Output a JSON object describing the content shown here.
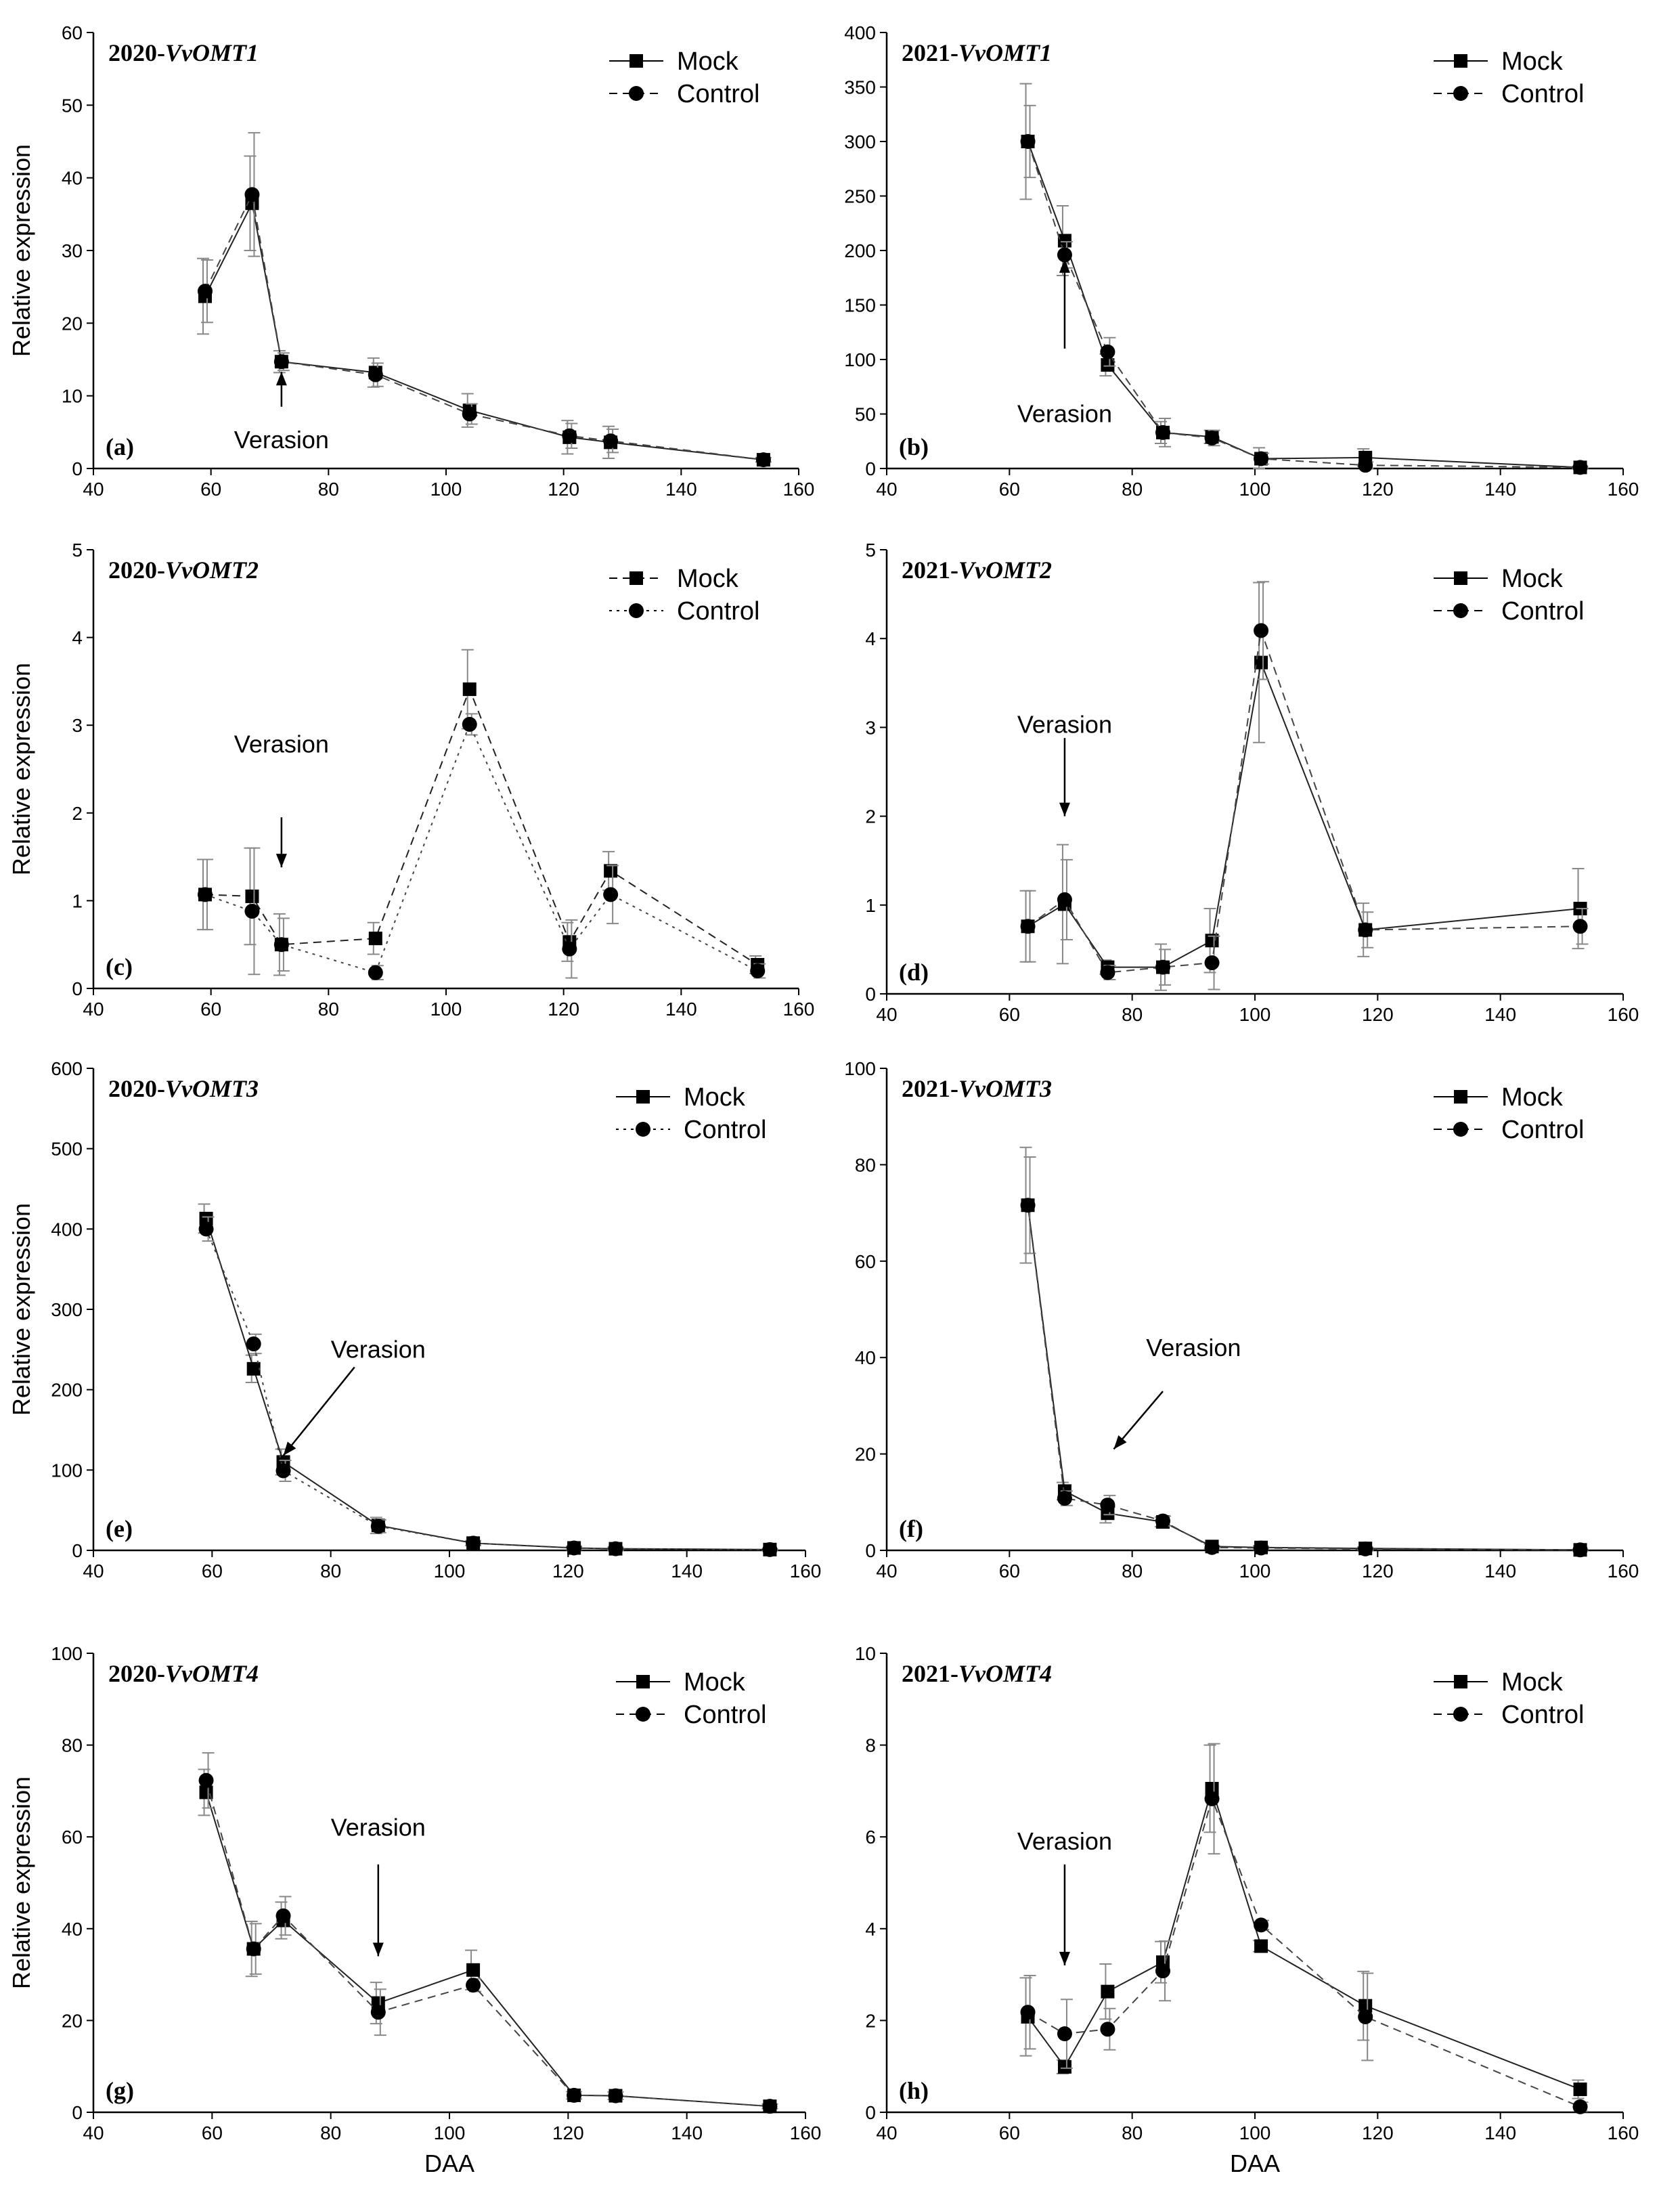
{
  "chart_data": [
    {
      "type": "line",
      "panel_label": "(a)",
      "title_prefix": "2020-",
      "title_gene": "VvOMT1",
      "xlabel": "",
      "ylabel": "Relative expression",
      "xlim": [
        40,
        160
      ],
      "ylim": [
        0,
        60
      ],
      "xticks": [
        40,
        60,
        80,
        100,
        120,
        140,
        160
      ],
      "yticks": [
        0,
        10,
        20,
        30,
        40,
        50,
        60
      ],
      "legend": "top-right",
      "series": [
        {
          "name": "Mock",
          "marker": "square",
          "line": "solid",
          "x": [
            59,
            67,
            72,
            88,
            104,
            121,
            128,
            154
          ],
          "y": [
            23.7,
            36.5,
            14.7,
            13.2,
            8,
            4.3,
            3.6,
            1.2
          ],
          "err": [
            5.2,
            6.5,
            1.5,
            2,
            2.3,
            2.3,
            2.2,
            0.3
          ]
        },
        {
          "name": "Control",
          "marker": "circle",
          "line": "dashed",
          "x": [
            59,
            67,
            72,
            88,
            104,
            121,
            128,
            154
          ],
          "y": [
            24.4,
            37.7,
            14.7,
            12.9,
            7.5,
            4.5,
            3.8,
            1.2
          ],
          "err": [
            4.3,
            8.5,
            1.2,
            1.6,
            1.4,
            1.7,
            1.6,
            0.3
          ]
        }
      ],
      "annotation": {
        "text": "Verasion",
        "x": 72,
        "arrow_from_y": 8.5,
        "arrow_to_y": 13.3,
        "text_y": 3.9
      }
    },
    {
      "type": "line",
      "panel_label": "(b)",
      "title_prefix": "2021-",
      "title_gene": "VvOMT1",
      "xlabel": "",
      "ylabel": "",
      "xlim": [
        40,
        160
      ],
      "ylim": [
        0,
        400
      ],
      "xticks": [
        40,
        60,
        80,
        100,
        120,
        140,
        160
      ],
      "yticks": [
        0,
        50,
        100,
        150,
        200,
        250,
        300,
        350,
        400
      ],
      "legend": "top-right",
      "series": [
        {
          "name": "Mock",
          "marker": "square",
          "line": "solid",
          "x": [
            63,
            69,
            76,
            85,
            93,
            101,
            118,
            153
          ],
          "y": [
            300,
            209,
            95,
            33,
            29,
            9,
            10,
            1
          ],
          "err": [
            53,
            32,
            10,
            10,
            6,
            10,
            8,
            1
          ]
        },
        {
          "name": "Control",
          "marker": "circle",
          "line": "dashed",
          "x": [
            63,
            69,
            76,
            85,
            93,
            101,
            118,
            153
          ],
          "y": [
            300,
            196,
            107,
            33,
            28,
            9,
            3,
            1
          ],
          "err": [
            33,
            12,
            13,
            13,
            7,
            5,
            3,
            1
          ]
        }
      ],
      "annotation": {
        "text": "Verasion",
        "x": 69,
        "arrow_from_y": 110,
        "arrow_to_y": 192,
        "text_y": 50
      }
    },
    {
      "type": "line",
      "panel_label": "(c)",
      "title_prefix": "2020-",
      "title_gene": "VvOMT2",
      "xlabel": "",
      "ylabel": "Relative expression",
      "xlim": [
        40,
        160
      ],
      "ylim": [
        0,
        5
      ],
      "xticks": [
        40,
        60,
        80,
        100,
        120,
        140,
        160
      ],
      "yticks": [
        0,
        1,
        2,
        3,
        4,
        5
      ],
      "legend": "top-right",
      "series": [
        {
          "name": "Mock",
          "marker": "square",
          "line": "dashed",
          "x": [
            59,
            67,
            72,
            88,
            104,
            121,
            128,
            153
          ],
          "y": [
            1.07,
            1.05,
            0.5,
            0.57,
            3.41,
            0.53,
            1.34,
            0.27
          ],
          "err": [
            0.4,
            0.55,
            0.35,
            0.18,
            0.45,
            0.22,
            0.22,
            0.1
          ]
        },
        {
          "name": "Control",
          "marker": "circle",
          "line": "dotted",
          "x": [
            59,
            67,
            72,
            88,
            104,
            121,
            128,
            153
          ],
          "y": [
            1.07,
            0.88,
            0.5,
            0.18,
            3.01,
            0.45,
            1.07,
            0.2
          ],
          "err": [
            0.4,
            0.72,
            0.3,
            0.08,
            0.12,
            0.33,
            0.33,
            0.08
          ]
        }
      ],
      "annotation": {
        "text": "Verasion",
        "x": 72,
        "arrow_from_y": 1.95,
        "arrow_to_y": 1.38,
        "text_y": 2.78
      }
    },
    {
      "type": "line",
      "panel_label": "(d)",
      "title_prefix": "2021-",
      "title_gene": "VvOMT2",
      "xlabel": "",
      "ylabel": "",
      "xlim": [
        40,
        160
      ],
      "ylim": [
        0,
        5
      ],
      "xticks": [
        40,
        60,
        80,
        100,
        120,
        140,
        160
      ],
      "yticks": [
        0,
        1,
        2,
        3,
        4,
        5
      ],
      "legend": "top-right",
      "series": [
        {
          "name": "Mock",
          "marker": "square",
          "line": "solid",
          "x": [
            63,
            69,
            76,
            85,
            93,
            101,
            118,
            153
          ],
          "y": [
            0.76,
            1.01,
            0.3,
            0.3,
            0.6,
            3.73,
            0.72,
            0.96
          ],
          "err": [
            0.4,
            0.67,
            0.08,
            0.26,
            0.36,
            0.9,
            0.3,
            0.45
          ]
        },
        {
          "name": "Control",
          "marker": "circle",
          "line": "dashed",
          "x": [
            63,
            69,
            76,
            85,
            93,
            101,
            118,
            153
          ],
          "y": [
            0.76,
            1.06,
            0.24,
            0.3,
            0.35,
            4.09,
            0.72,
            0.76
          ],
          "err": [
            0.4,
            0.45,
            0.08,
            0.2,
            0.3,
            0.55,
            0.2,
            0.2
          ]
        }
      ],
      "annotation": {
        "text": "Verasion",
        "x": 69,
        "arrow_from_y": 2.88,
        "arrow_to_y": 2.0,
        "text_y": 3.03
      }
    },
    {
      "type": "line",
      "panel_label": "(e)",
      "title_prefix": "2020-",
      "title_gene": "VvOMT3",
      "xlabel": "",
      "ylabel": "Relative expression",
      "xlim": [
        40,
        160
      ],
      "ylim": [
        0,
        600
      ],
      "xticks": [
        40,
        60,
        80,
        100,
        120,
        140,
        160
      ],
      "yticks": [
        0,
        100,
        200,
        300,
        400,
        500,
        600
      ],
      "legend": "top-right",
      "series": [
        {
          "name": "Mock",
          "marker": "square",
          "line": "solid",
          "x": [
            59,
            67,
            72,
            88,
            104,
            121,
            128,
            154
          ],
          "y": [
            413,
            226,
            110,
            31,
            9,
            3,
            2,
            1
          ],
          "err": [
            18,
            17,
            16,
            10,
            3,
            2,
            2,
            1
          ]
        },
        {
          "name": "Control",
          "marker": "circle",
          "line": "dotted",
          "x": [
            59,
            67,
            72,
            88,
            104,
            121,
            128,
            154
          ],
          "y": [
            400,
            257,
            99,
            30,
            9,
            3,
            2,
            1
          ],
          "err": [
            15,
            12,
            13,
            8,
            3,
            2,
            2,
            1
          ]
        }
      ],
      "annotation": {
        "text": "Verasion",
        "x": 72,
        "arrow_from_x": 84,
        "arrow_from_y": 228,
        "arrow_to_y": 118,
        "text_x": 88,
        "text_y": 250
      }
    },
    {
      "type": "line",
      "panel_label": "(f)",
      "title_prefix": "2021-",
      "title_gene": "VvOMT3",
      "xlabel": "",
      "ylabel": "",
      "xlim": [
        40,
        160
      ],
      "ylim": [
        0,
        100
      ],
      "xticks": [
        40,
        60,
        80,
        100,
        120,
        140,
        160
      ],
      "yticks": [
        0,
        20,
        40,
        60,
        80,
        100
      ],
      "legend": "top-right",
      "series": [
        {
          "name": "Mock",
          "marker": "square",
          "line": "solid",
          "x": [
            63,
            69,
            76,
            85,
            93,
            101,
            118,
            153
          ],
          "y": [
            71.6,
            12.3,
            7.7,
            5.9,
            0.8,
            0.6,
            0.4,
            0.1
          ],
          "err": [
            12,
            1.8,
            2,
            1,
            0.5,
            0.4,
            0.3,
            0.1
          ]
        },
        {
          "name": "Control",
          "marker": "circle",
          "line": "dashed",
          "x": [
            63,
            69,
            76,
            85,
            93,
            101,
            118,
            153
          ],
          "y": [
            71.6,
            10.8,
            9.4,
            6.1,
            0.6,
            0.5,
            0.3,
            0.1
          ],
          "err": [
            10,
            1.5,
            2,
            1,
            0.4,
            0.3,
            0.3,
            0.1
          ]
        }
      ],
      "annotation": {
        "text": "Verasion",
        "x": 76,
        "arrow_from_x": 85,
        "arrow_from_y": 33,
        "arrow_to_x": 77,
        "arrow_to_y": 21,
        "text_x": 90,
        "text_y": 42
      }
    },
    {
      "type": "line",
      "panel_label": "(g)",
      "title_prefix": "2020-",
      "title_gene": "VvOMT4",
      "xlabel": "DAA",
      "ylabel": "Relative expression",
      "xlim": [
        40,
        160
      ],
      "ylim": [
        0,
        100
      ],
      "xticks": [
        40,
        60,
        80,
        100,
        120,
        140,
        160
      ],
      "yticks": [
        0,
        20,
        40,
        60,
        80,
        100
      ],
      "legend": "top-right",
      "series": [
        {
          "name": "Mock",
          "marker": "square",
          "line": "solid",
          "x": [
            59,
            67,
            72,
            88,
            104,
            121,
            128,
            154
          ],
          "y": [
            69.7,
            35.6,
            41.8,
            23.8,
            31,
            3.7,
            3.6,
            1.3
          ],
          "err": [
            5,
            6,
            4,
            4.5,
            4.3,
            0.8,
            0.8,
            0.5
          ]
        },
        {
          "name": "Control",
          "marker": "circle",
          "line": "dashed",
          "x": [
            59,
            67,
            72,
            88,
            104,
            121,
            128,
            154
          ],
          "y": [
            72.3,
            35.6,
            42.8,
            21.8,
            27.7,
            3.7,
            3.6,
            1.3
          ],
          "err": [
            6,
            5.5,
            4.2,
            5,
            1.4,
            0.8,
            0.8,
            0.5
          ]
        }
      ],
      "annotation": {
        "text": "Verasion",
        "x": 88,
        "arrow_from_y": 54,
        "arrow_to_y": 34,
        "text_y": 62
      }
    },
    {
      "type": "line",
      "panel_label": "(h)",
      "title_prefix": "2021-",
      "title_gene": "VvOMT4",
      "xlabel": "DAA",
      "ylabel": "",
      "xlim": [
        40,
        160
      ],
      "ylim": [
        0,
        10
      ],
      "xticks": [
        40,
        60,
        80,
        100,
        120,
        140,
        160
      ],
      "yticks": [
        0,
        2,
        4,
        6,
        8,
        10
      ],
      "legend": "top-right",
      "series": [
        {
          "name": "Mock",
          "marker": "square",
          "line": "solid",
          "x": [
            63,
            69,
            76,
            85,
            93,
            101,
            118,
            153
          ],
          "y": [
            2.08,
            0.99,
            2.63,
            3.27,
            7.05,
            3.62,
            2.32,
            0.5
          ],
          "err": [
            0.85,
            0.15,
            0.6,
            0.45,
            0.95,
            0.12,
            0.75,
            0.2
          ]
        },
        {
          "name": "Control",
          "marker": "circle",
          "line": "dashed",
          "x": [
            63,
            69,
            76,
            85,
            93,
            101,
            118,
            153
          ],
          "y": [
            2.18,
            1.71,
            1.81,
            3.08,
            6.83,
            4.08,
            2.08,
            0.12
          ],
          "err": [
            0.8,
            0.75,
            0.45,
            0.65,
            1.2,
            0.1,
            0.95,
            0.1
          ]
        }
      ],
      "annotation": {
        "text": "Verasion",
        "x": 69,
        "arrow_from_y": 5.4,
        "arrow_to_y": 3.2,
        "text_y": 5.9
      }
    }
  ],
  "colors": {
    "axis": "#000000",
    "mock": "#222222",
    "control": "#444444",
    "error": "#888888"
  }
}
